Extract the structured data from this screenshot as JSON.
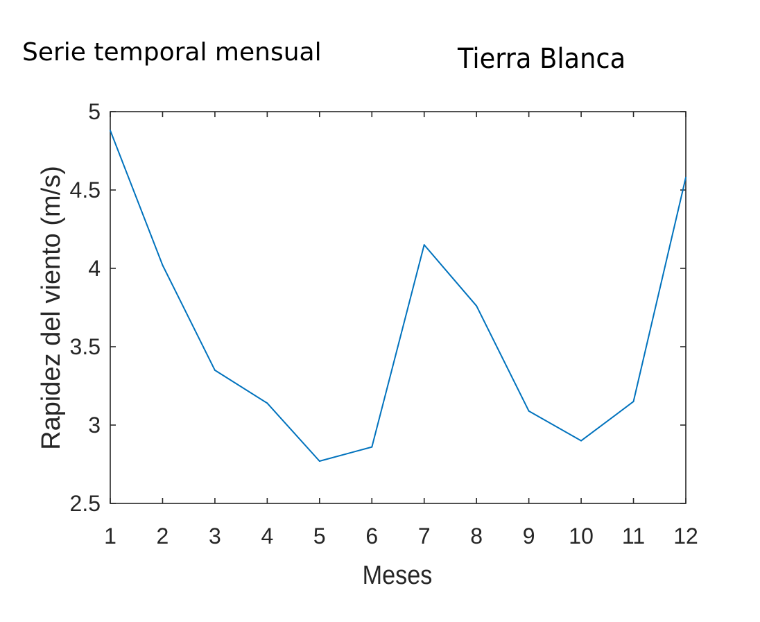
{
  "headings": {
    "left": "Serie temporal mensual",
    "right": "Tierra Blanca"
  },
  "chart_data": {
    "type": "line",
    "title": "",
    "xlabel": "Meses",
    "ylabel": "Rapidez del viento (m/s)",
    "x": [
      1,
      2,
      3,
      4,
      5,
      6,
      7,
      8,
      9,
      10,
      11,
      12
    ],
    "xlim": [
      1,
      12
    ],
    "ylim": [
      2.5,
      5
    ],
    "xticks": [
      1,
      2,
      3,
      4,
      5,
      6,
      7,
      8,
      9,
      10,
      11,
      12
    ],
    "yticks": [
      2.5,
      3,
      3.5,
      4,
      4.5,
      5
    ],
    "ytick_labels": [
      "2.5",
      "3",
      "3.5",
      "4",
      "4.5",
      "5"
    ],
    "grid": false,
    "series": [
      {
        "color": "#0072BD",
        "values": [
          4.88,
          4.02,
          3.35,
          3.14,
          2.77,
          2.86,
          4.15,
          3.76,
          3.09,
          2.9,
          3.15,
          4.58
        ]
      }
    ]
  }
}
